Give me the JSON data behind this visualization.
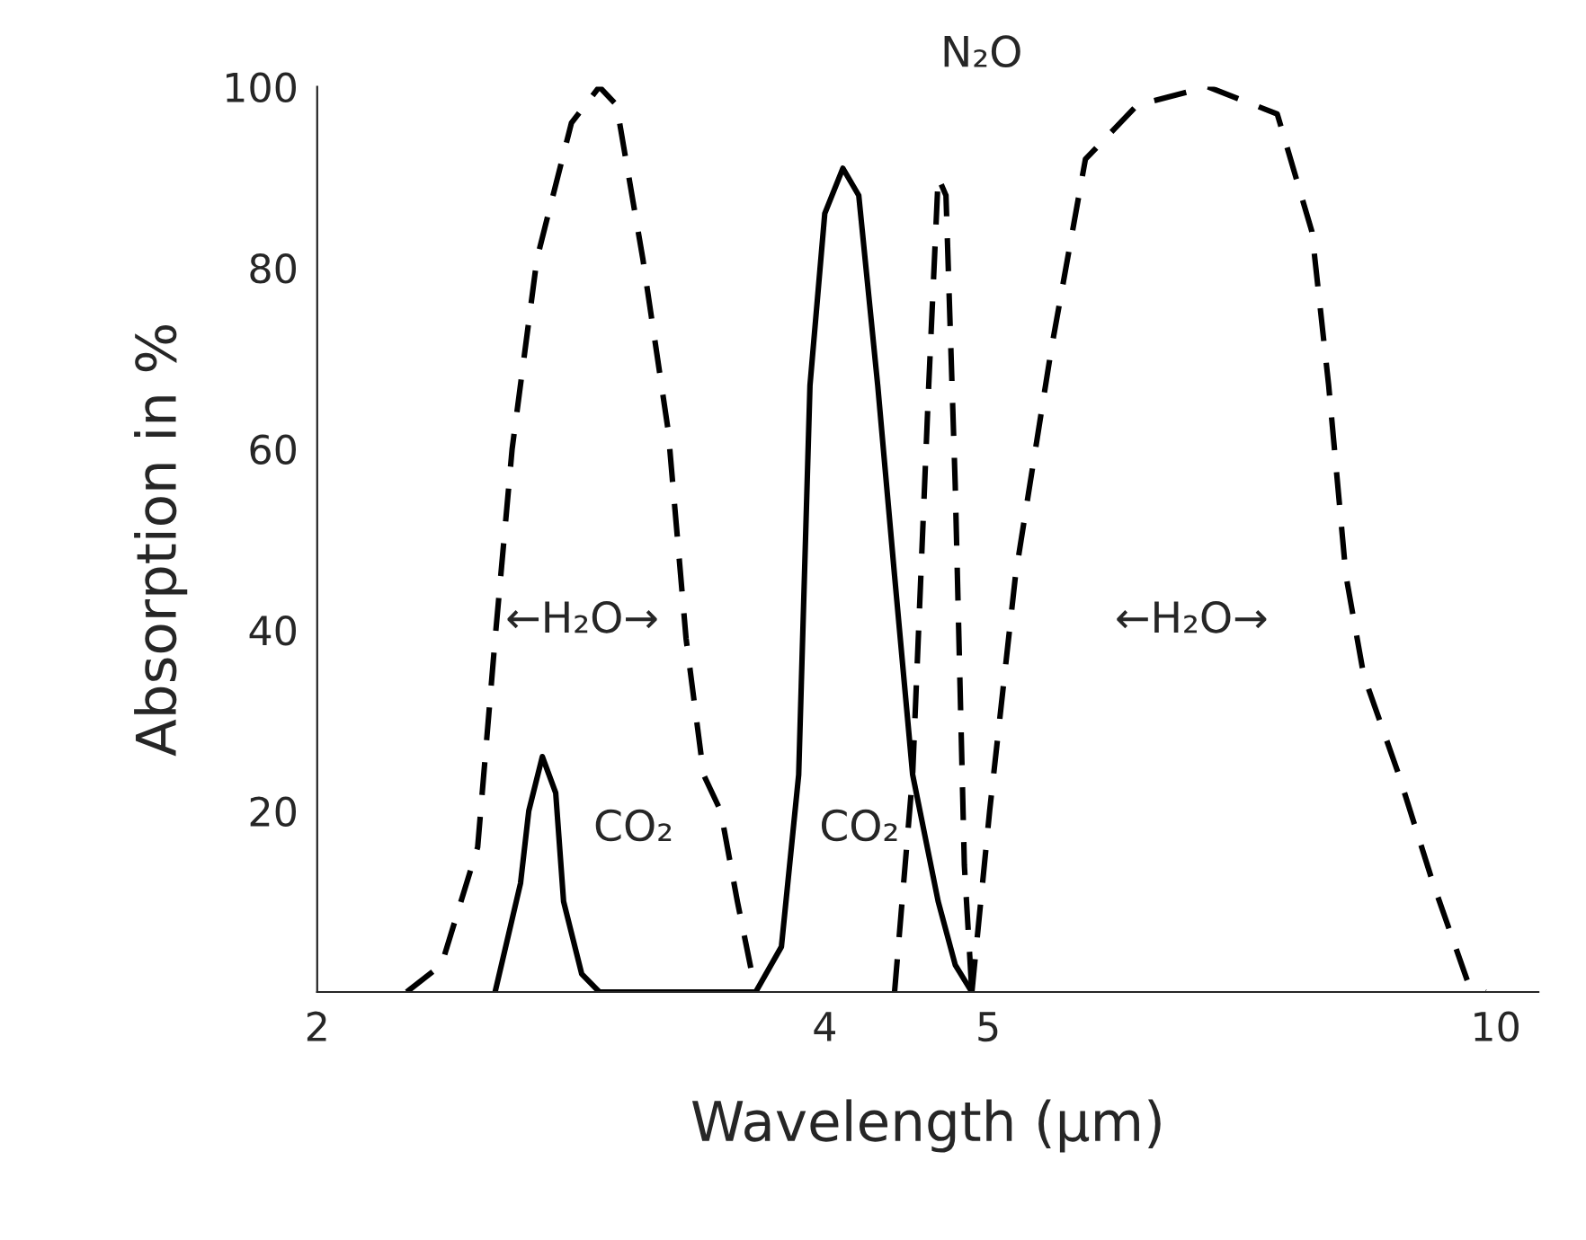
{
  "chart_data": {
    "type": "line",
    "xlabel": "Wavelength (µm)",
    "ylabel": "Absorption in %",
    "log": "x",
    "xlim": [
      2,
      10.6
    ],
    "xticks": [
      2,
      4,
      5,
      10
    ],
    "ylim": [
      0,
      100
    ],
    "yticks": [
      20,
      40,
      60,
      80,
      100
    ],
    "grid": false,
    "legend": false,
    "marker": "none",
    "series": [
      {
        "color": "#000000",
        "line_style": "dashed",
        "x": [
          2.26,
          2.37,
          2.49,
          2.55,
          2.61,
          2.7,
          2.83,
          2.94,
          3.01,
          3.12,
          3.23,
          3.31,
          3.39,
          3.47,
          3.55,
          3.64
        ],
        "values": [
          0,
          3,
          16,
          39,
          60,
          81,
          96,
          100,
          98,
          81,
          62,
          39,
          24,
          20,
          10,
          0
        ]
      },
      {
        "color": "#000000",
        "line_style": "solid",
        "x": [
          2.55,
          2.64,
          2.67,
          2.72,
          2.77,
          2.8,
          2.87,
          2.94,
          3.64,
          3.77,
          3.86,
          3.92,
          4.0,
          4.1,
          4.19,
          4.3,
          4.4,
          4.51,
          4.67,
          4.78,
          4.89
        ],
        "values": [
          0,
          12,
          20,
          26,
          22,
          10,
          2,
          0,
          0,
          5,
          24,
          67,
          86,
          91,
          88,
          67,
          46,
          24,
          10,
          3,
          0
        ]
      },
      {
        "color": "#000000",
        "line_style": "dashed",
        "x": [
          4.4,
          4.51,
          4.61,
          4.67,
          4.72,
          4.78,
          4.84,
          4.89
        ],
        "values": [
          0,
          24,
          67,
          90,
          88,
          56,
          14,
          0
        ]
      },
      {
        "color": "#000000",
        "line_style": "dashed",
        "x": [
          4.89,
          5.01,
          5.19,
          5.45,
          5.71,
          6.13,
          6.75,
          7.42,
          7.78,
          7.96,
          8.15,
          8.35,
          8.76,
          9.18,
          9.63,
          9.86
        ],
        "values": [
          0,
          20,
          46,
          71,
          92,
          98,
          100,
          97,
          84,
          67,
          46,
          35,
          24,
          12,
          1,
          0
        ]
      }
    ],
    "annotations": [
      "←H₂O→",
      "CO₂",
      "CO₂",
      "N₂O",
      "←H₂O→"
    ]
  }
}
